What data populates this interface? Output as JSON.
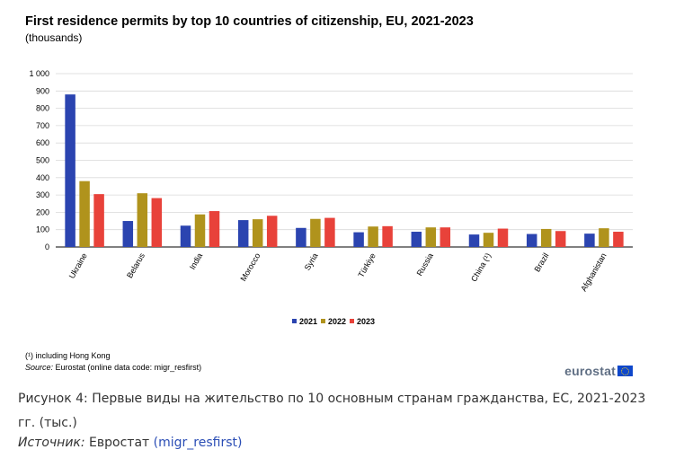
{
  "chart_data": {
    "type": "bar",
    "title": "First residence permits by top 10 countries of citizenship, EU, 2021-2023",
    "subtitle": "(thousands)",
    "categories": [
      "Ukraine",
      "Belarus",
      "India",
      "Morocco",
      "Syria",
      "Türkiye",
      "Russia",
      "China (¹)",
      "Brazil",
      "Afghanistan"
    ],
    "series": [
      {
        "name": "2021",
        "color": "#2b44b0",
        "values": [
          880,
          150,
          123,
          155,
          110,
          85,
          88,
          72,
          75,
          77
        ]
      },
      {
        "name": "2022",
        "color": "#b0931c",
        "values": [
          380,
          310,
          188,
          160,
          162,
          118,
          113,
          82,
          104,
          108
        ]
      },
      {
        "name": "2023",
        "color": "#e8423a",
        "values": [
          305,
          282,
          207,
          180,
          168,
          120,
          113,
          106,
          92,
          88
        ]
      }
    ],
    "ylim": [
      0,
      1000
    ],
    "yticks": [
      0,
      100,
      200,
      300,
      400,
      500,
      600,
      700,
      800,
      900,
      1000
    ],
    "ytick_labels": [
      "0",
      "100",
      "200",
      "300",
      "400",
      "500",
      "600",
      "700",
      "800",
      "900",
      "1 000"
    ],
    "grid": true,
    "legend_position": "bottom"
  },
  "footnote": "(¹) including Hong Kong",
  "source_label": "Source:",
  "source_text": " Eurostat (online data code: migr_resfirst)",
  "logo_text": "eurostat",
  "caption": "Рисунок 4: Первые виды на жительство по 10 основным странам гражданства, ЕС, 2021-2023 гг. (тыс.)",
  "caption_source_label": "Источник:",
  "caption_source_text": " Евростат ",
  "caption_source_link": "(migr_resfirst)"
}
